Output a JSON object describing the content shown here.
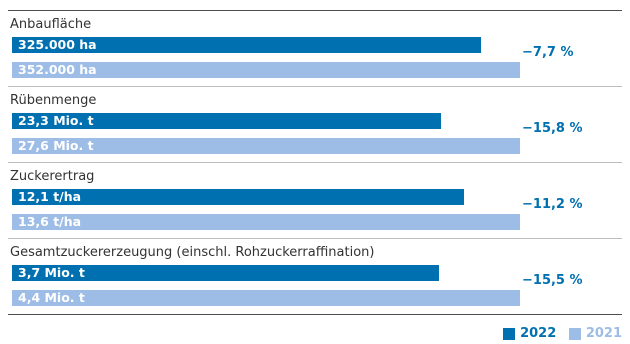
{
  "colors": {
    "current": "#0070b0",
    "previous": "#9dbde6",
    "change": "#0070b0"
  },
  "chart_data": {
    "type": "bar",
    "orientation": "horizontal",
    "series": [
      {
        "name": "2022",
        "color": "#0070b0"
      },
      {
        "name": "2021",
        "color": "#9dbde6"
      }
    ],
    "panels": [
      {
        "category": "Anbaufläche",
        "values": [
          325000,
          352000
        ],
        "value_labels": [
          "325.000 ha",
          "352.000 ha"
        ],
        "change": "−7,7 %"
      },
      {
        "category": "Rübenmenge",
        "values": [
          23.3,
          27.6
        ],
        "value_labels": [
          "23,3 Mio. t",
          "27,6 Mio. t"
        ],
        "change": "−15,8 %"
      },
      {
        "category": "Zuckerertrag",
        "values": [
          12.1,
          13.6
        ],
        "value_labels": [
          "12,1 t/ha",
          "13,6 t/ha"
        ],
        "change": "−11,2 %"
      },
      {
        "category": "Gesamtzuckererzeugung (einschl. Rohzuckerraffination)",
        "values": [
          3.7,
          4.4
        ],
        "value_labels": [
          "3,7 Mio. t",
          "4,4 Mio. t"
        ],
        "change": "−15,5 %"
      }
    ],
    "legend": [
      "2022",
      "2021"
    ],
    "legend_position": "bottom-right"
  }
}
